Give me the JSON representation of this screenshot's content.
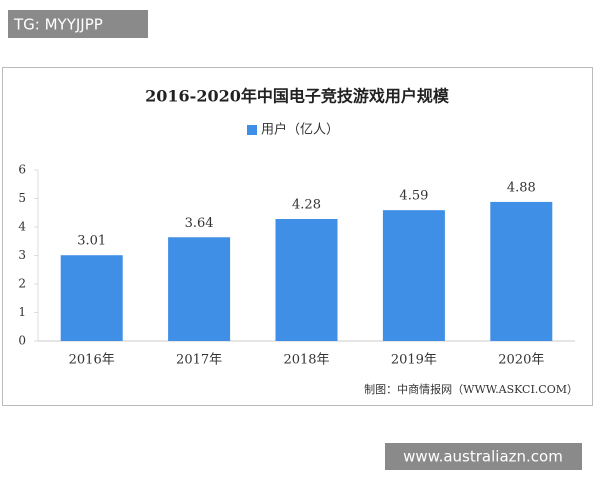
{
  "header": {
    "tag": "TG: MYYJJPP"
  },
  "footer": {
    "url": "www.australiazn.com"
  },
  "chart_data": {
    "type": "bar",
    "title": "2016-2020年中国电子竞技游戏用户规模",
    "categories": [
      "2016年",
      "2017年",
      "2018年",
      "2019年",
      "2020年"
    ],
    "series": [
      {
        "name": "用户（亿人）",
        "color": "#3f8fe6",
        "values": [
          3.01,
          3.64,
          4.28,
          4.59,
          4.88
        ]
      }
    ],
    "ylim": [
      0,
      6
    ],
    "yticks": [
      0,
      1,
      2,
      3,
      4,
      5,
      6
    ],
    "grid": false,
    "source": "制图：中商情报网（WWW.ASKCI.COM）"
  }
}
